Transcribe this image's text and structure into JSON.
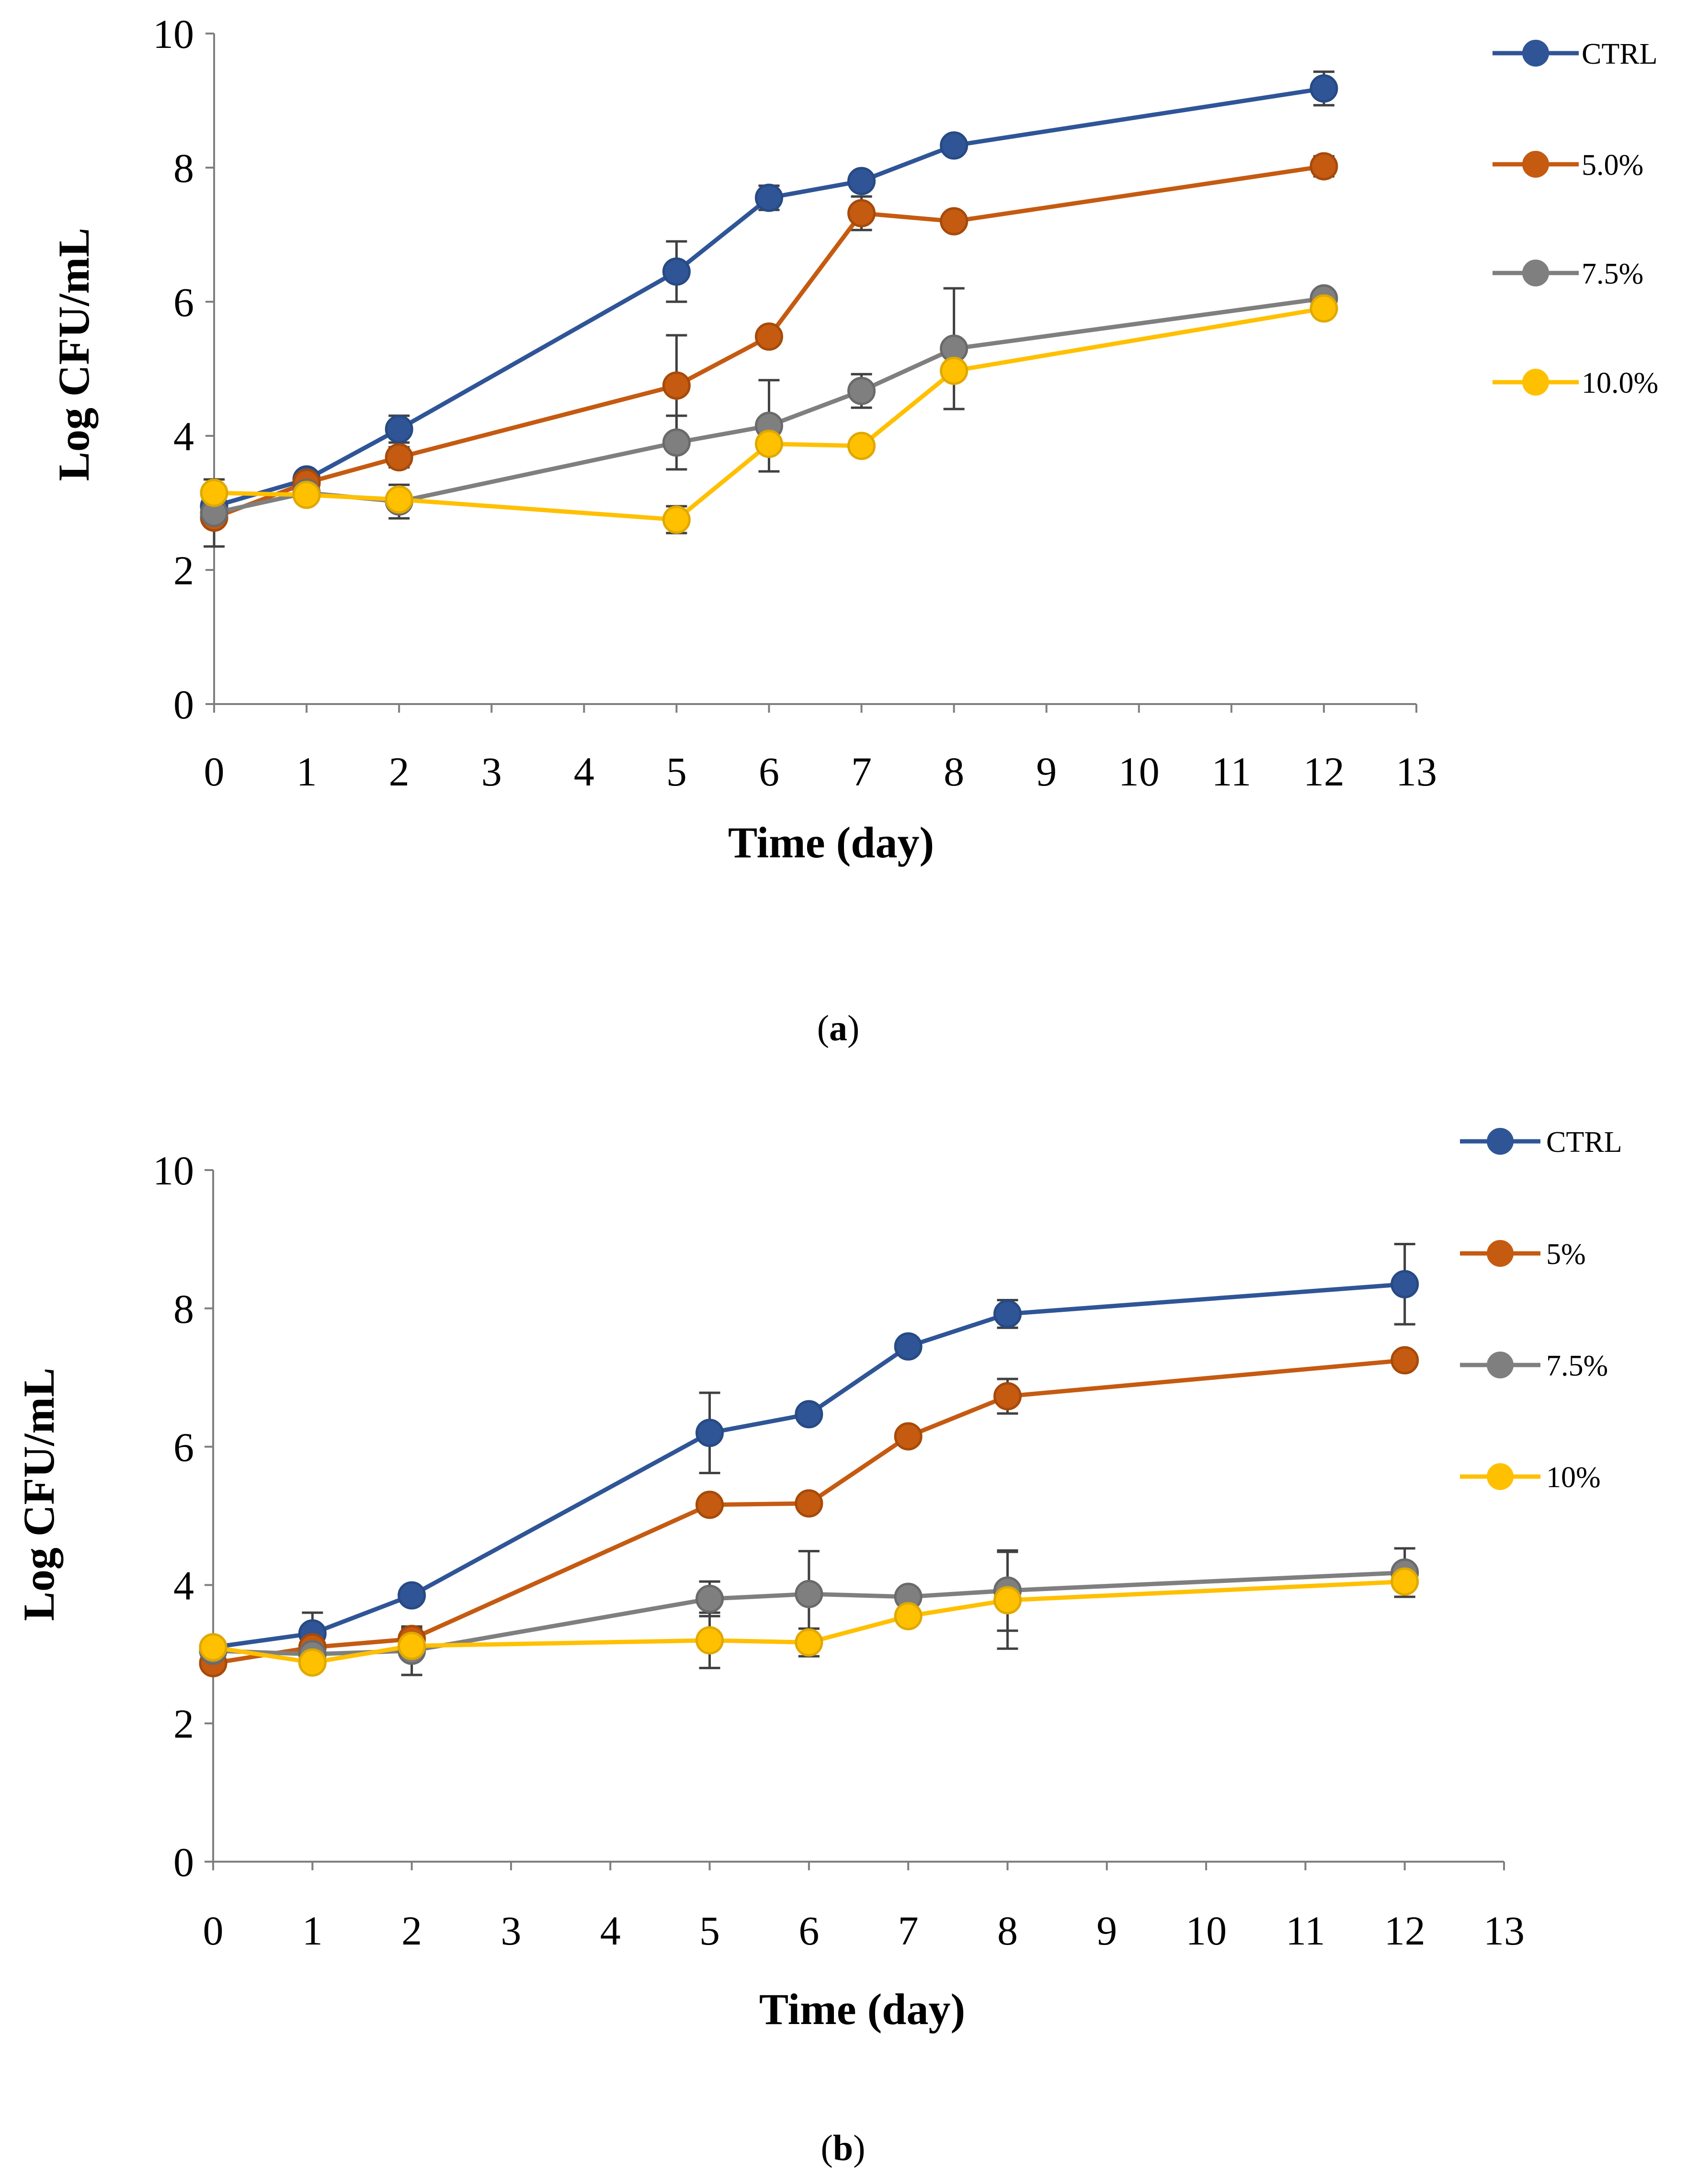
{
  "colors": {
    "CTRL": "#2F5597",
    "5": "#C55A11",
    "7.5": "#7F7F7F",
    "10": "#FFC000",
    "axis": "#7F7F7F",
    "text": "#000000"
  },
  "chart_data": [
    {
      "type": "line",
      "caption_letter": "a",
      "caption_open": "(",
      "caption_close": ")",
      "title": "",
      "xlabel": "Time (day)",
      "ylabel": "Log CFU/mL",
      "xlim": [
        0,
        13
      ],
      "ylim": [
        0,
        10
      ],
      "xticks": [
        0,
        1,
        2,
        3,
        4,
        5,
        6,
        7,
        8,
        9,
        10,
        11,
        12,
        13
      ],
      "yticks": [
        0,
        2,
        4,
        6,
        8,
        10
      ],
      "grid": false,
      "legend_position": "right",
      "x": [
        0,
        1,
        2,
        5,
        6,
        7,
        8,
        12
      ],
      "series": [
        {
          "name": "CTRL",
          "color_key": "CTRL",
          "values": [
            2.95,
            3.35,
            4.1,
            6.45,
            7.55,
            7.8,
            8.33,
            9.18
          ],
          "errors": [
            0.1,
            0.08,
            0.2,
            0.45,
            0.18,
            0.1,
            0.1,
            0.25
          ]
        },
        {
          "name": "5.0%",
          "color_key": "5",
          "values": [
            2.78,
            3.3,
            3.68,
            4.75,
            5.48,
            7.32,
            7.2,
            8.02
          ],
          "errors": [
            0.1,
            0.08,
            0.15,
            0.75,
            0.1,
            0.25,
            0.1,
            0.15
          ]
        },
        {
          "name": "7.5%",
          "color_key": "7.5",
          "values": [
            2.85,
            3.15,
            3.02,
            3.9,
            4.15,
            4.67,
            5.3,
            6.05
          ],
          "errors": [
            0.5,
            0.08,
            0.25,
            0.4,
            0.68,
            0.25,
            0.9,
            0.1
          ]
        },
        {
          "name": "10.0%",
          "color_key": "10",
          "values": [
            3.15,
            3.12,
            3.05,
            2.75,
            3.88,
            3.85,
            4.97,
            5.9
          ],
          "errors": [
            0.1,
            0.08,
            0.1,
            0.2,
            0.1,
            0.1,
            0.1,
            0.1
          ]
        }
      ]
    },
    {
      "type": "line",
      "caption_letter": "b",
      "caption_open": "(",
      "caption_close": ")",
      "title": "",
      "xlabel": "Time (day)",
      "ylabel": "Log CFU/mL",
      "xlim": [
        0,
        13
      ],
      "ylim": [
        0,
        10
      ],
      "xticks": [
        0,
        1,
        2,
        3,
        4,
        5,
        6,
        7,
        8,
        9,
        10,
        11,
        12,
        13
      ],
      "yticks": [
        0,
        2,
        4,
        6,
        8,
        10
      ],
      "grid": false,
      "legend_position": "right",
      "x": [
        0,
        1,
        2,
        5,
        6,
        7,
        8,
        12
      ],
      "series": [
        {
          "name": "CTRL",
          "color_key": "CTRL",
          "values": [
            3.1,
            3.3,
            3.85,
            6.2,
            6.47,
            7.45,
            7.92,
            8.35
          ],
          "errors": [
            0.1,
            0.3,
            0.1,
            0.58,
            0.1,
            0.1,
            0.2,
            0.58
          ]
        },
        {
          "name": "5%",
          "color_key": "5",
          "values": [
            2.87,
            3.1,
            3.22,
            5.16,
            5.18,
            6.15,
            6.73,
            7.25
          ],
          "errors": [
            0.1,
            0.1,
            0.15,
            0.1,
            0.1,
            0.1,
            0.25,
            0.1
          ]
        },
        {
          "name": "7.5%",
          "color_key": "7.5",
          "values": [
            3.05,
            3.0,
            3.05,
            3.8,
            3.87,
            3.83,
            3.92,
            4.18
          ],
          "errors": [
            0.1,
            0.1,
            0.35,
            0.25,
            0.62,
            0.1,
            0.58,
            0.35
          ]
        },
        {
          "name": "10%",
          "color_key": "10",
          "values": [
            3.1,
            2.88,
            3.12,
            3.2,
            3.17,
            3.55,
            3.78,
            4.05
          ],
          "errors": [
            0.1,
            0.1,
            0.1,
            0.4,
            0.2,
            0.1,
            0.7,
            0.22
          ]
        }
      ]
    }
  ]
}
